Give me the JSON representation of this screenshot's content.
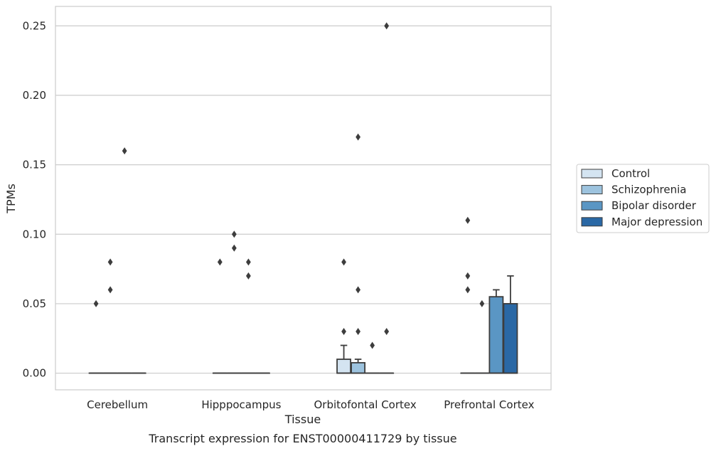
{
  "chart_data": {
    "type": "box",
    "caption": "Transcript expression for ENST00000411729 by tissue",
    "xlabel": "Tissue",
    "ylabel": "TPMs",
    "ylim": [
      -0.012,
      0.264
    ],
    "yticks": [
      0.0,
      0.05,
      0.1,
      0.15,
      0.2,
      0.25
    ],
    "ytick_labels": [
      "0.00",
      "0.05",
      "0.10",
      "0.15",
      "0.20",
      "0.25"
    ],
    "grid": true,
    "legend_position": "right",
    "categories": [
      "Cerebellum",
      "Hipppocampus",
      "Orbitofontal Cortex",
      "Prefrontal Cortex"
    ],
    "series": [
      {
        "name": "Control",
        "color": "#d4e4f1",
        "boxes": [
          {
            "q1": 0,
            "median": 0,
            "q3": 0,
            "whisker_low": 0,
            "whisker_high": 0,
            "outliers": [
              0.05
            ]
          },
          {
            "q1": 0,
            "median": 0,
            "q3": 0,
            "whisker_low": 0,
            "whisker_high": 0,
            "outliers": [
              0.08
            ]
          },
          {
            "q1": 0,
            "median": 0,
            "q3": 0.01,
            "whisker_low": 0,
            "whisker_high": 0.02,
            "outliers": [
              0.03,
              0.08
            ]
          },
          {
            "q1": 0,
            "median": 0,
            "q3": 0,
            "whisker_low": 0,
            "whisker_high": 0,
            "outliers": [
              0.06,
              0.07,
              0.11
            ]
          }
        ]
      },
      {
        "name": "Schizophrenia",
        "color": "#9dc3de",
        "boxes": [
          {
            "q1": 0,
            "median": 0,
            "q3": 0,
            "whisker_low": 0,
            "whisker_high": 0,
            "outliers": [
              0.06,
              0.08
            ]
          },
          {
            "q1": 0,
            "median": 0,
            "q3": 0,
            "whisker_low": 0,
            "whisker_high": 0,
            "outliers": [
              0.09,
              0.1
            ]
          },
          {
            "q1": 0,
            "median": 0,
            "q3": 0.0075,
            "whisker_low": 0,
            "whisker_high": 0.01,
            "outliers": [
              0.03,
              0.06,
              0.17
            ]
          },
          {
            "q1": 0,
            "median": 0,
            "q3": 0,
            "whisker_low": 0,
            "whisker_high": 0,
            "outliers": [
              0.05
            ]
          }
        ]
      },
      {
        "name": "Bipolar disorder",
        "color": "#5a96c4",
        "boxes": [
          {
            "q1": 0,
            "median": 0,
            "q3": 0,
            "whisker_low": 0,
            "whisker_high": 0,
            "outliers": [
              0.16
            ]
          },
          {
            "q1": 0,
            "median": 0,
            "q3": 0,
            "whisker_low": 0,
            "whisker_high": 0,
            "outliers": [
              0.07,
              0.08
            ]
          },
          {
            "q1": 0,
            "median": 0,
            "q3": 0,
            "whisker_low": 0,
            "whisker_high": 0,
            "outliers": [
              0.02
            ]
          },
          {
            "q1": 0,
            "median": 0,
            "q3": 0.055,
            "whisker_low": 0,
            "whisker_high": 0.06,
            "outliers": []
          }
        ]
      },
      {
        "name": "Major depression",
        "color": "#2a68a5",
        "boxes": [
          {
            "q1": 0,
            "median": 0,
            "q3": 0,
            "whisker_low": 0,
            "whisker_high": 0,
            "outliers": []
          },
          {
            "q1": 0,
            "median": 0,
            "q3": 0,
            "whisker_low": 0,
            "whisker_high": 0,
            "outliers": []
          },
          {
            "q1": 0,
            "median": 0,
            "q3": 0,
            "whisker_low": 0,
            "whisker_high": 0,
            "outliers": [
              0.03,
              0.25
            ]
          },
          {
            "q1": 0,
            "median": 0,
            "q3": 0.05,
            "whisker_low": 0,
            "whisker_high": 0.07,
            "outliers": []
          }
        ]
      }
    ]
  }
}
